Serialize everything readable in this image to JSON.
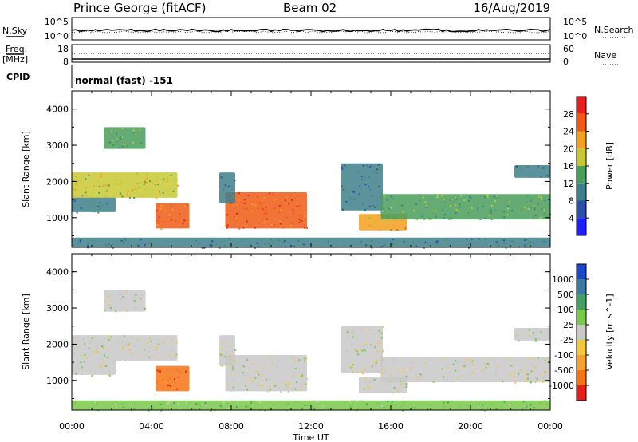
{
  "header": {
    "station": "Prince George (fitACF)",
    "beam": "Beam 02",
    "date": "16/Aug/2019",
    "mode": "normal (fast) -151"
  },
  "top_strip": {
    "nsky_label": "N.Sky",
    "nsearch_label": "N.Search",
    "nsky_ticks": [
      "10^5",
      "10^0"
    ],
    "nsearch_ticks": [
      "10^5",
      "10^0"
    ],
    "freq_label": "Freq.",
    "freq_unit": "[MHz]",
    "freq_ticks": [
      "18",
      "8"
    ],
    "nave_label": "Nave",
    "nave_ticks": [
      "60",
      "0"
    ],
    "cpid_label": "CPID"
  },
  "chart_data": [
    {
      "type": "heatmap",
      "quantity": "Power",
      "ylabel": "Slant Range [km]",
      "xlabel": "Time UT",
      "x_ticks": [
        "00:00",
        "04:00",
        "08:00",
        "12:00",
        "16:00",
        "20:00",
        "00:00"
      ],
      "x_range_hours": [
        0,
        24
      ],
      "y_range_km": [
        180,
        4500
      ],
      "y_ticks": [
        1000,
        2000,
        3000,
        4000
      ],
      "colorbar": {
        "label": "Power [dB]",
        "ticks": [
          "4",
          "8",
          "12",
          "16",
          "20",
          "24",
          "28"
        ],
        "colors": [
          "#1e1eff",
          "#2d4fa8",
          "#3f7f8a",
          "#4a9e5c",
          "#c8c832",
          "#f2a01e",
          "#f05a14",
          "#e61e1e"
        ]
      },
      "echo_regions": [
        {
          "t": [
            1.6,
            3.7
          ],
          "r": [
            2900,
            3500
          ],
          "level": 3
        },
        {
          "t": [
            0.0,
            5.3
          ],
          "r": [
            1550,
            2250
          ],
          "level": 4
        },
        {
          "t": [
            0.0,
            2.2
          ],
          "r": [
            1150,
            1550
          ],
          "level": 2
        },
        {
          "t": [
            4.2,
            5.9
          ],
          "r": [
            700,
            1400
          ],
          "level": 6
        },
        {
          "t": [
            7.7,
            11.8
          ],
          "r": [
            700,
            1700
          ],
          "level": 6
        },
        {
          "t": [
            7.4,
            8.2
          ],
          "r": [
            1400,
            2250
          ],
          "level": 2
        },
        {
          "t": [
            13.5,
            15.6
          ],
          "r": [
            1200,
            2500
          ],
          "level": 2
        },
        {
          "t": [
            14.4,
            16.8
          ],
          "r": [
            650,
            1100
          ],
          "level": 5
        },
        {
          "t": [
            15.5,
            24.0
          ],
          "r": [
            950,
            1650
          ],
          "level": 3
        },
        {
          "t": [
            22.2,
            24.0
          ],
          "r": [
            2100,
            2450
          ],
          "level": 2
        },
        {
          "t": [
            0.0,
            24.0
          ],
          "r": [
            180,
            450
          ],
          "level": 2
        }
      ]
    },
    {
      "type": "heatmap",
      "quantity": "Velocity",
      "ylabel": "Slant Range [km]",
      "xlabel": "Time UT",
      "x_ticks": [
        "00:00",
        "04:00",
        "08:00",
        "12:00",
        "16:00",
        "20:00",
        "00:00"
      ],
      "x_range_hours": [
        0,
        24
      ],
      "y_range_km": [
        180,
        4500
      ],
      "y_ticks": [
        1000,
        2000,
        3000,
        4000
      ],
      "colorbar": {
        "label": "Velocity [m s^-1]",
        "ticks": [
          "1000",
          "500",
          "100",
          "25",
          "-25",
          "-100",
          "-500",
          "-1000"
        ],
        "colors": [
          "#1e46c8",
          "#3c78a0",
          "#46a064",
          "#78c84b",
          "#c8c8c8",
          "#f2c83c",
          "#f5a032",
          "#f57314",
          "#e61e1e"
        ]
      },
      "echo_regions": [
        {
          "t": [
            1.6,
            3.7
          ],
          "r": [
            2900,
            3500
          ],
          "level": 4
        },
        {
          "t": [
            0.0,
            5.3
          ],
          "r": [
            1550,
            2250
          ],
          "level": 4
        },
        {
          "t": [
            0.0,
            2.2
          ],
          "r": [
            1150,
            1550
          ],
          "level": 4
        },
        {
          "t": [
            4.2,
            5.9
          ],
          "r": [
            700,
            1400
          ],
          "level": 7
        },
        {
          "t": [
            7.7,
            11.8
          ],
          "r": [
            700,
            1700
          ],
          "level": 4
        },
        {
          "t": [
            7.4,
            8.2
          ],
          "r": [
            1400,
            2250
          ],
          "level": 4
        },
        {
          "t": [
            13.5,
            15.6
          ],
          "r": [
            1200,
            2500
          ],
          "level": 4
        },
        {
          "t": [
            14.4,
            16.8
          ],
          "r": [
            650,
            1100
          ],
          "level": 4
        },
        {
          "t": [
            15.5,
            24.0
          ],
          "r": [
            950,
            1650
          ],
          "level": 4
        },
        {
          "t": [
            22.2,
            24.0
          ],
          "r": [
            2100,
            2450
          ],
          "level": 4
        },
        {
          "t": [
            0.0,
            24.0
          ],
          "r": [
            180,
            450
          ],
          "level": 3
        }
      ]
    }
  ]
}
